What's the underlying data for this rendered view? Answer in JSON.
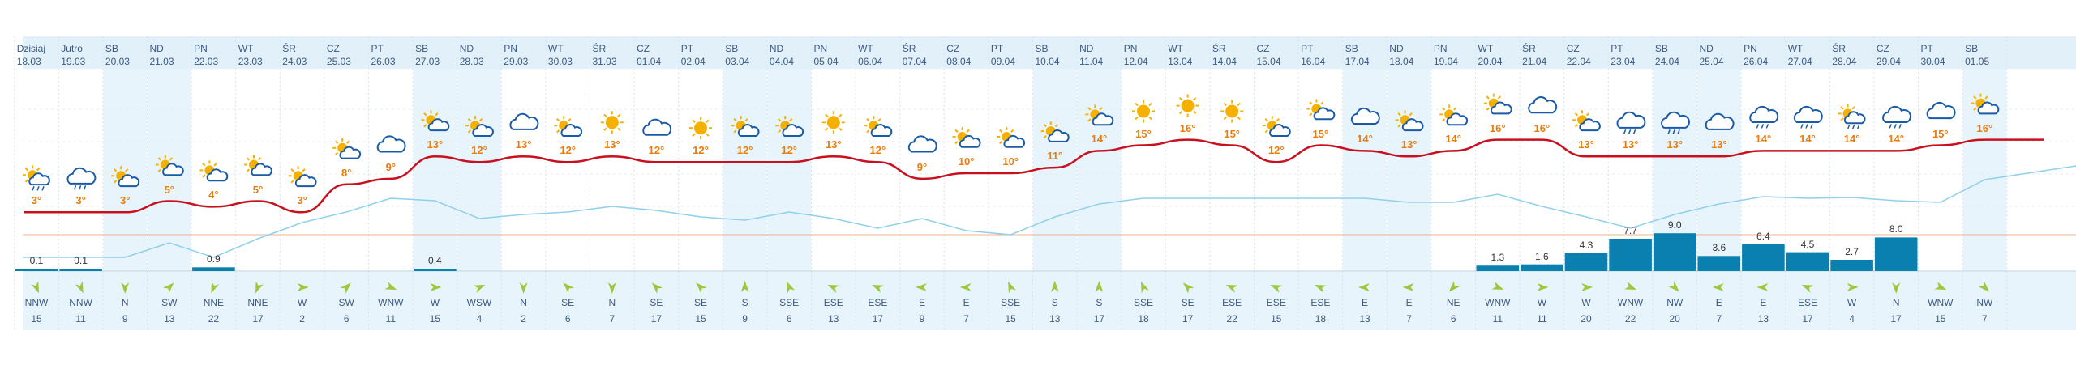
{
  "colors": {
    "weekend_bg": "#e8f4fb",
    "header_bg": "#e2f0f9",
    "wind_bg": "#e8f4fb",
    "temperature": "#c8101e",
    "humidity": "#8fd0ea",
    "pressure": "#f0b090",
    "precip_bar": "#0a80b0",
    "temp_label": "#e87c0c",
    "icon_sun": "#f6b100",
    "icon_cloud": "#1a5ba8",
    "wind_arrow": "#9bc83c"
  },
  "days": [
    {
      "name": "Dzisiaj",
      "date": "18.03",
      "weekend": false,
      "icon": "sun-cloud-rain-icon",
      "temp": 3,
      "precip": 0.1,
      "wind_dir": "NNW",
      "wind_speed": 15,
      "wind_deg": 337
    },
    {
      "name": "Jutro",
      "date": "19.03",
      "weekend": false,
      "icon": "cloud-rain-icon",
      "temp": 3,
      "precip": 0.1,
      "wind_dir": "NNW",
      "wind_speed": 11,
      "wind_deg": 337
    },
    {
      "name": "SB",
      "date": "20.03",
      "weekend": true,
      "icon": "sun-cloud-icon",
      "temp": 3,
      "precip": 0,
      "wind_dir": "N",
      "wind_speed": 9,
      "wind_deg": 0
    },
    {
      "name": "ND",
      "date": "21.03",
      "weekend": true,
      "icon": "sun-cloud-icon",
      "temp": 5,
      "precip": 0,
      "wind_dir": "SW",
      "wind_speed": 13,
      "wind_deg": 225
    },
    {
      "name": "PN",
      "date": "22.03",
      "weekend": false,
      "icon": "sun-cloud-icon",
      "temp": 4,
      "precip": 0.9,
      "wind_dir": "NNE",
      "wind_speed": 22,
      "wind_deg": 22
    },
    {
      "name": "WT",
      "date": "23.03",
      "weekend": false,
      "icon": "sun-cloud-icon",
      "temp": 5,
      "precip": 0,
      "wind_dir": "NNE",
      "wind_speed": 17,
      "wind_deg": 22
    },
    {
      "name": "ŚR",
      "date": "24.03",
      "weekend": false,
      "icon": "sun-cloud-icon",
      "temp": 3,
      "precip": 0,
      "wind_dir": "W",
      "wind_speed": 2,
      "wind_deg": 270
    },
    {
      "name": "CZ",
      "date": "25.03",
      "weekend": false,
      "icon": "sun-cloud-icon",
      "temp": 8,
      "precip": 0,
      "wind_dir": "SW",
      "wind_speed": 6,
      "wind_deg": 225
    },
    {
      "name": "PT",
      "date": "26.03",
      "weekend": false,
      "icon": "cloud-icon",
      "temp": 9,
      "precip": 0,
      "wind_dir": "WNW",
      "wind_speed": 11,
      "wind_deg": 292
    },
    {
      "name": "SB",
      "date": "27.03",
      "weekend": true,
      "icon": "sun-cloud-icon",
      "temp": 13,
      "precip": 0.4,
      "wind_dir": "W",
      "wind_speed": 15,
      "wind_deg": 270
    },
    {
      "name": "ND",
      "date": "28.03",
      "weekend": true,
      "icon": "sun-cloud-icon",
      "temp": 12,
      "precip": 0,
      "wind_dir": "WSW",
      "wind_speed": 4,
      "wind_deg": 247
    },
    {
      "name": "PN",
      "date": "29.03",
      "weekend": false,
      "icon": "cloud-icon",
      "temp": 13,
      "precip": 0,
      "wind_dir": "N",
      "wind_speed": 2,
      "wind_deg": 0
    },
    {
      "name": "WT",
      "date": "30.03",
      "weekend": false,
      "icon": "sun-cloud-icon",
      "temp": 12,
      "precip": 0,
      "wind_dir": "SE",
      "wind_speed": 6,
      "wind_deg": 135
    },
    {
      "name": "ŚR",
      "date": "31.03",
      "weekend": false,
      "icon": "sun-icon",
      "temp": 13,
      "precip": 0,
      "wind_dir": "N",
      "wind_speed": 7,
      "wind_deg": 0
    },
    {
      "name": "CZ",
      "date": "01.04",
      "weekend": false,
      "icon": "cloud-icon",
      "temp": 12,
      "precip": 0,
      "wind_dir": "SE",
      "wind_speed": 17,
      "wind_deg": 135
    },
    {
      "name": "PT",
      "date": "02.04",
      "weekend": false,
      "icon": "sun-icon",
      "temp": 12,
      "precip": 0,
      "wind_dir": "SE",
      "wind_speed": 15,
      "wind_deg": 135
    },
    {
      "name": "SB",
      "date": "03.04",
      "weekend": true,
      "icon": "sun-cloud-icon",
      "temp": 12,
      "precip": 0,
      "wind_dir": "S",
      "wind_speed": 9,
      "wind_deg": 180
    },
    {
      "name": "ND",
      "date": "04.04",
      "weekend": true,
      "icon": "sun-cloud-icon",
      "temp": 12,
      "precip": 0,
      "wind_dir": "SSE",
      "wind_speed": 6,
      "wind_deg": 157
    },
    {
      "name": "PN",
      "date": "05.04",
      "weekend": false,
      "icon": "sun-icon",
      "temp": 13,
      "precip": 0,
      "wind_dir": "ESE",
      "wind_speed": 13,
      "wind_deg": 112
    },
    {
      "name": "WT",
      "date": "06.04",
      "weekend": false,
      "icon": "sun-cloud-icon",
      "temp": 12,
      "precip": 0,
      "wind_dir": "ESE",
      "wind_speed": 17,
      "wind_deg": 112
    },
    {
      "name": "ŚR",
      "date": "07.04",
      "weekend": false,
      "icon": "cloud-icon",
      "temp": 9,
      "precip": 0,
      "wind_dir": "E",
      "wind_speed": 9,
      "wind_deg": 90
    },
    {
      "name": "CZ",
      "date": "08.04",
      "weekend": false,
      "icon": "sun-cloud-icon",
      "temp": 10,
      "precip": 0,
      "wind_dir": "E",
      "wind_speed": 7,
      "wind_deg": 90
    },
    {
      "name": "PT",
      "date": "09.04",
      "weekend": false,
      "icon": "sun-cloud-icon",
      "temp": 10,
      "precip": 0,
      "wind_dir": "SSE",
      "wind_speed": 15,
      "wind_deg": 157
    },
    {
      "name": "SB",
      "date": "10.04",
      "weekend": true,
      "icon": "sun-cloud-icon",
      "temp": 11,
      "precip": 0,
      "wind_dir": "S",
      "wind_speed": 13,
      "wind_deg": 180
    },
    {
      "name": "ND",
      "date": "11.04",
      "weekend": true,
      "icon": "sun-cloud-icon",
      "temp": 14,
      "precip": 0,
      "wind_dir": "S",
      "wind_speed": 17,
      "wind_deg": 180
    },
    {
      "name": "PN",
      "date": "12.04",
      "weekend": false,
      "icon": "sun-icon",
      "temp": 15,
      "precip": 0,
      "wind_dir": "SSE",
      "wind_speed": 18,
      "wind_deg": 157
    },
    {
      "name": "WT",
      "date": "13.04",
      "weekend": false,
      "icon": "sun-icon",
      "temp": 16,
      "precip": 0,
      "wind_dir": "SE",
      "wind_speed": 17,
      "wind_deg": 135
    },
    {
      "name": "ŚR",
      "date": "14.04",
      "weekend": false,
      "icon": "sun-icon",
      "temp": 15,
      "precip": 0,
      "wind_dir": "ESE",
      "wind_speed": 22,
      "wind_deg": 112
    },
    {
      "name": "CZ",
      "date": "15.04",
      "weekend": false,
      "icon": "sun-cloud-icon",
      "temp": 12,
      "precip": 0,
      "wind_dir": "ESE",
      "wind_speed": 15,
      "wind_deg": 112
    },
    {
      "name": "PT",
      "date": "16.04",
      "weekend": false,
      "icon": "sun-cloud-icon",
      "temp": 15,
      "precip": 0,
      "wind_dir": "ESE",
      "wind_speed": 18,
      "wind_deg": 112
    },
    {
      "name": "SB",
      "date": "17.04",
      "weekend": true,
      "icon": "cloud-icon",
      "temp": 14,
      "precip": 0,
      "wind_dir": "E",
      "wind_speed": 13,
      "wind_deg": 90
    },
    {
      "name": "ND",
      "date": "18.04",
      "weekend": true,
      "icon": "sun-cloud-icon",
      "temp": 13,
      "precip": 0,
      "wind_dir": "E",
      "wind_speed": 7,
      "wind_deg": 90
    },
    {
      "name": "PN",
      "date": "19.04",
      "weekend": false,
      "icon": "sun-cloud-icon",
      "temp": 14,
      "precip": 0,
      "wind_dir": "NE",
      "wind_speed": 6,
      "wind_deg": 45
    },
    {
      "name": "WT",
      "date": "20.04",
      "weekend": false,
      "icon": "sun-cloud-icon",
      "temp": 16,
      "precip": 1.3,
      "wind_dir": "WNW",
      "wind_speed": 11,
      "wind_deg": 292
    },
    {
      "name": "ŚR",
      "date": "21.04",
      "weekend": false,
      "icon": "cloud-icon",
      "temp": 16,
      "precip": 1.6,
      "wind_dir": "W",
      "wind_speed": 11,
      "wind_deg": 270
    },
    {
      "name": "CZ",
      "date": "22.04",
      "weekend": false,
      "icon": "sun-cloud-icon",
      "temp": 13,
      "precip": 4.3,
      "wind_dir": "W",
      "wind_speed": 20,
      "wind_deg": 270
    },
    {
      "name": "PT",
      "date": "23.04",
      "weekend": false,
      "icon": "cloud-rain-icon",
      "temp": 13,
      "precip": 7.7,
      "wind_dir": "WNW",
      "wind_speed": 22,
      "wind_deg": 292
    },
    {
      "name": "SB",
      "date": "24.04",
      "weekend": true,
      "icon": "cloud-rain-icon",
      "temp": 13,
      "precip": 9.0,
      "wind_dir": "NW",
      "wind_speed": 20,
      "wind_deg": 315
    },
    {
      "name": "ND",
      "date": "25.04",
      "weekend": true,
      "icon": "cloud-icon",
      "temp": 13,
      "precip": 3.6,
      "wind_dir": "E",
      "wind_speed": 7,
      "wind_deg": 90
    },
    {
      "name": "PN",
      "date": "26.04",
      "weekend": false,
      "icon": "cloud-rain-icon",
      "temp": 14,
      "precip": 6.4,
      "wind_dir": "E",
      "wind_speed": 13,
      "wind_deg": 90
    },
    {
      "name": "WT",
      "date": "27.04",
      "weekend": false,
      "icon": "cloud-rain-icon",
      "temp": 14,
      "precip": 4.5,
      "wind_dir": "ESE",
      "wind_speed": 17,
      "wind_deg": 112
    },
    {
      "name": "ŚR",
      "date": "28.04",
      "weekend": false,
      "icon": "sun-cloud-rain-icon",
      "temp": 14,
      "precip": 2.7,
      "wind_dir": "W",
      "wind_speed": 4,
      "wind_deg": 270
    },
    {
      "name": "CZ",
      "date": "29.04",
      "weekend": false,
      "icon": "cloud-rain-icon",
      "temp": 14,
      "precip": 8.0,
      "wind_dir": "N",
      "wind_speed": 17,
      "wind_deg": 0
    },
    {
      "name": "PT",
      "date": "30.04",
      "weekend": false,
      "icon": "cloud-icon",
      "temp": 15,
      "precip": 0,
      "wind_dir": "WNW",
      "wind_speed": 15,
      "wind_deg": 292
    },
    {
      "name": "SB",
      "date": "01.05",
      "weekend": true,
      "icon": "sun-cloud-icon",
      "temp": 16,
      "precip": 0,
      "wind_dir": "NW",
      "wind_speed": 7,
      "wind_deg": 315
    }
  ],
  "chart_data": {
    "type": "line",
    "categories": [
      "18.03",
      "19.03",
      "20.03",
      "21.03",
      "22.03",
      "23.03",
      "24.03",
      "25.03",
      "26.03",
      "27.03",
      "28.03",
      "29.03",
      "30.03",
      "31.03",
      "01.04",
      "02.04",
      "03.04",
      "04.04",
      "05.04",
      "06.04",
      "07.04",
      "08.04",
      "09.04",
      "10.04",
      "11.04",
      "12.04",
      "13.04",
      "14.04",
      "15.04",
      "16.04",
      "17.04",
      "18.04",
      "19.04",
      "20.04",
      "21.04",
      "22.04",
      "23.04",
      "24.04",
      "25.04",
      "26.04",
      "27.04",
      "28.04",
      "29.04",
      "30.04",
      "01.05"
    ],
    "series": [
      {
        "values": [
          3,
          3,
          3,
          5,
          4,
          5,
          3,
          8,
          9,
          13,
          12,
          13,
          12,
          13,
          12,
          12,
          12,
          12,
          13,
          12,
          9,
          10,
          10,
          11,
          14,
          15,
          16,
          15,
          12,
          15,
          14,
          13,
          14,
          16,
          16,
          13,
          13,
          13,
          13,
          14,
          14,
          14,
          14,
          15,
          16
        ]
      },
      {
        "values": [
          0.1,
          0.1,
          0,
          0,
          0.9,
          0,
          0,
          0,
          0,
          0.4,
          0,
          0,
          0,
          0,
          0,
          0,
          0,
          0,
          0,
          0,
          0,
          0,
          0,
          0,
          0,
          0,
          0,
          0,
          0,
          0,
          0,
          0,
          0,
          1.3,
          1.6,
          4.3,
          7.7,
          9.0,
          3.6,
          6.4,
          4.5,
          2.7,
          8.0,
          0,
          0
        ]
      }
    ]
  }
}
